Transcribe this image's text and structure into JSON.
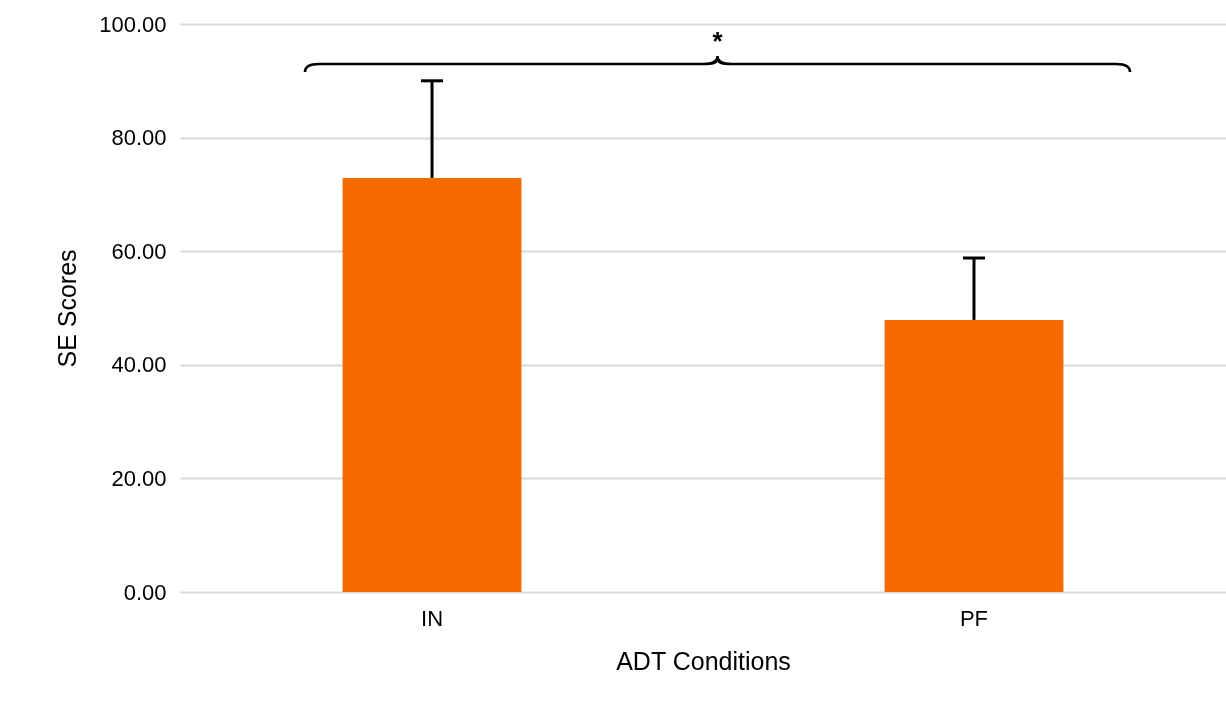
{
  "chart_data": {
    "type": "bar",
    "xlabel": "ADT Conditions",
    "ylabel": "SE Scores",
    "categories": [
      "IN",
      "PF"
    ],
    "values": [
      72.9,
      47.9
    ],
    "errors": [
      [
        72.9,
        90.0
      ],
      [
        47.9,
        58.8
      ]
    ],
    "color": "#f56a00",
    "ylim": [
      0,
      100
    ],
    "yticks": [
      {
        "value": 0,
        "label": "0.00"
      },
      {
        "value": 20,
        "label": "20.00"
      },
      {
        "value": 40,
        "label": "40.00"
      },
      {
        "value": 60,
        "label": "60.00"
      },
      {
        "value": 80,
        "label": "80.00"
      },
      {
        "value": 100,
        "label": "100.00"
      }
    ],
    "grid": "y",
    "annotations": [
      "*"
    ]
  }
}
